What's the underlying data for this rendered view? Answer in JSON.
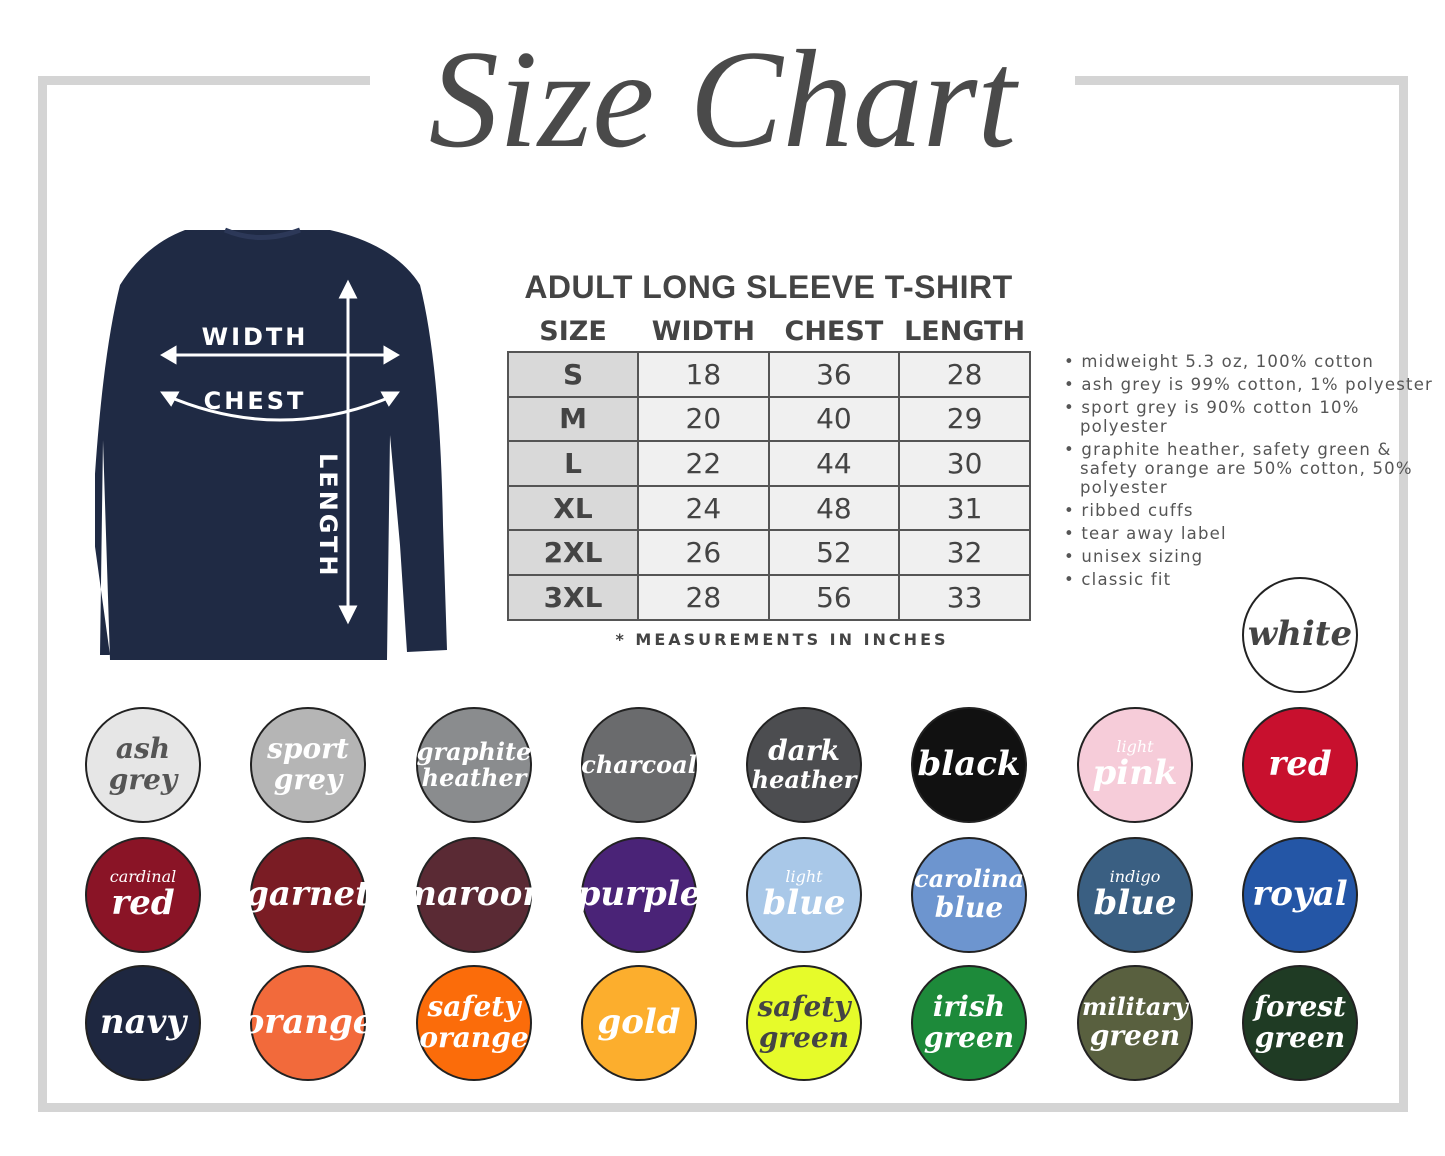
{
  "title": "Size Chart",
  "garment": {
    "width_label": "WIDTH",
    "chest_label": "CHEST",
    "length_label": "LENGTH",
    "color": "#1f2a44"
  },
  "table": {
    "title": "ADULT LONG SLEEVE T-SHIRT",
    "headers": [
      "SIZE",
      "WIDTH",
      "CHEST",
      "LENGTH"
    ],
    "rows": [
      [
        "S",
        "18",
        "36",
        "28"
      ],
      [
        "M",
        "20",
        "40",
        "29"
      ],
      [
        "L",
        "22",
        "44",
        "30"
      ],
      [
        "XL",
        "24",
        "48",
        "31"
      ],
      [
        "2XL",
        "26",
        "52",
        "32"
      ],
      [
        "3XL",
        "28",
        "56",
        "33"
      ]
    ],
    "note": "* MEASUREMENTS IN INCHES"
  },
  "features": [
    "midweight 5.3 oz, 100% cotton",
    "ash grey is 99% cotton, 1% polyester",
    "sport grey is 90% cotton 10% polyester",
    "graphite heather, safety green & safety orange are 50% cotton, 50% polyester",
    "ribbed cuffs",
    "tear away label",
    "unisex sizing",
    "classic fit"
  ],
  "colors": [
    {
      "lines": [
        "white"
      ],
      "bg": "#ffffff",
      "fg": "#444444"
    },
    {
      "lines": [
        "ash",
        "grey"
      ],
      "bg": "#e6e6e6",
      "fg": "#555555"
    },
    {
      "lines": [
        "sport",
        "grey"
      ],
      "bg": "#b5b5b5",
      "fg": "#ffffff"
    },
    {
      "lines": [
        "graphite",
        "heather"
      ],
      "bg": "#8a8c8e",
      "fg": "#ffffff"
    },
    {
      "lines": [
        "charcoal"
      ],
      "bg": "#6a6b6d",
      "fg": "#ffffff"
    },
    {
      "lines": [
        "dark",
        "heather"
      ],
      "bg": "#4c4d50",
      "fg": "#ffffff"
    },
    {
      "lines": [
        "black"
      ],
      "bg": "#111111",
      "fg": "#ffffff"
    },
    {
      "lines": [
        "light",
        "pink"
      ],
      "bg": "#f6ccd9",
      "fg": "#ffffff"
    },
    {
      "lines": [
        "red"
      ],
      "bg": "#c8102e",
      "fg": "#ffffff"
    },
    {
      "lines": [
        "cardinal",
        "red"
      ],
      "bg": "#8a1426",
      "fg": "#ffffff"
    },
    {
      "lines": [
        "garnet"
      ],
      "bg": "#7a1c24",
      "fg": "#ffffff"
    },
    {
      "lines": [
        "maroon"
      ],
      "bg": "#5a2a34",
      "fg": "#ffffff"
    },
    {
      "lines": [
        "purple"
      ],
      "bg": "#4a2377",
      "fg": "#ffffff"
    },
    {
      "lines": [
        "light",
        "blue"
      ],
      "bg": "#a9c8e8",
      "fg": "#ffffff"
    },
    {
      "lines": [
        "carolina",
        "blue"
      ],
      "bg": "#6d95cf",
      "fg": "#ffffff"
    },
    {
      "lines": [
        "indigo",
        "blue"
      ],
      "bg": "#3a5f82",
      "fg": "#ffffff"
    },
    {
      "lines": [
        "royal"
      ],
      "bg": "#2456a6",
      "fg": "#ffffff"
    },
    {
      "lines": [
        "navy"
      ],
      "bg": "#1e2740",
      "fg": "#ffffff"
    },
    {
      "lines": [
        "orange"
      ],
      "bg": "#f26a3b",
      "fg": "#ffffff"
    },
    {
      "lines": [
        "safety",
        "orange"
      ],
      "bg": "#fb6c0a",
      "fg": "#ffffff"
    },
    {
      "lines": [
        "gold"
      ],
      "bg": "#fcae2d",
      "fg": "#ffffff"
    },
    {
      "lines": [
        "safety",
        "green"
      ],
      "bg": "#e6fb2a",
      "fg": "#444444"
    },
    {
      "lines": [
        "irish",
        "green"
      ],
      "bg": "#1d8a3a",
      "fg": "#ffffff"
    },
    {
      "lines": [
        "military",
        "green"
      ],
      "bg": "#59603f",
      "fg": "#ffffff"
    },
    {
      "lines": [
        "forest",
        "green"
      ],
      "bg": "#1f3b24",
      "fg": "#ffffff"
    }
  ]
}
